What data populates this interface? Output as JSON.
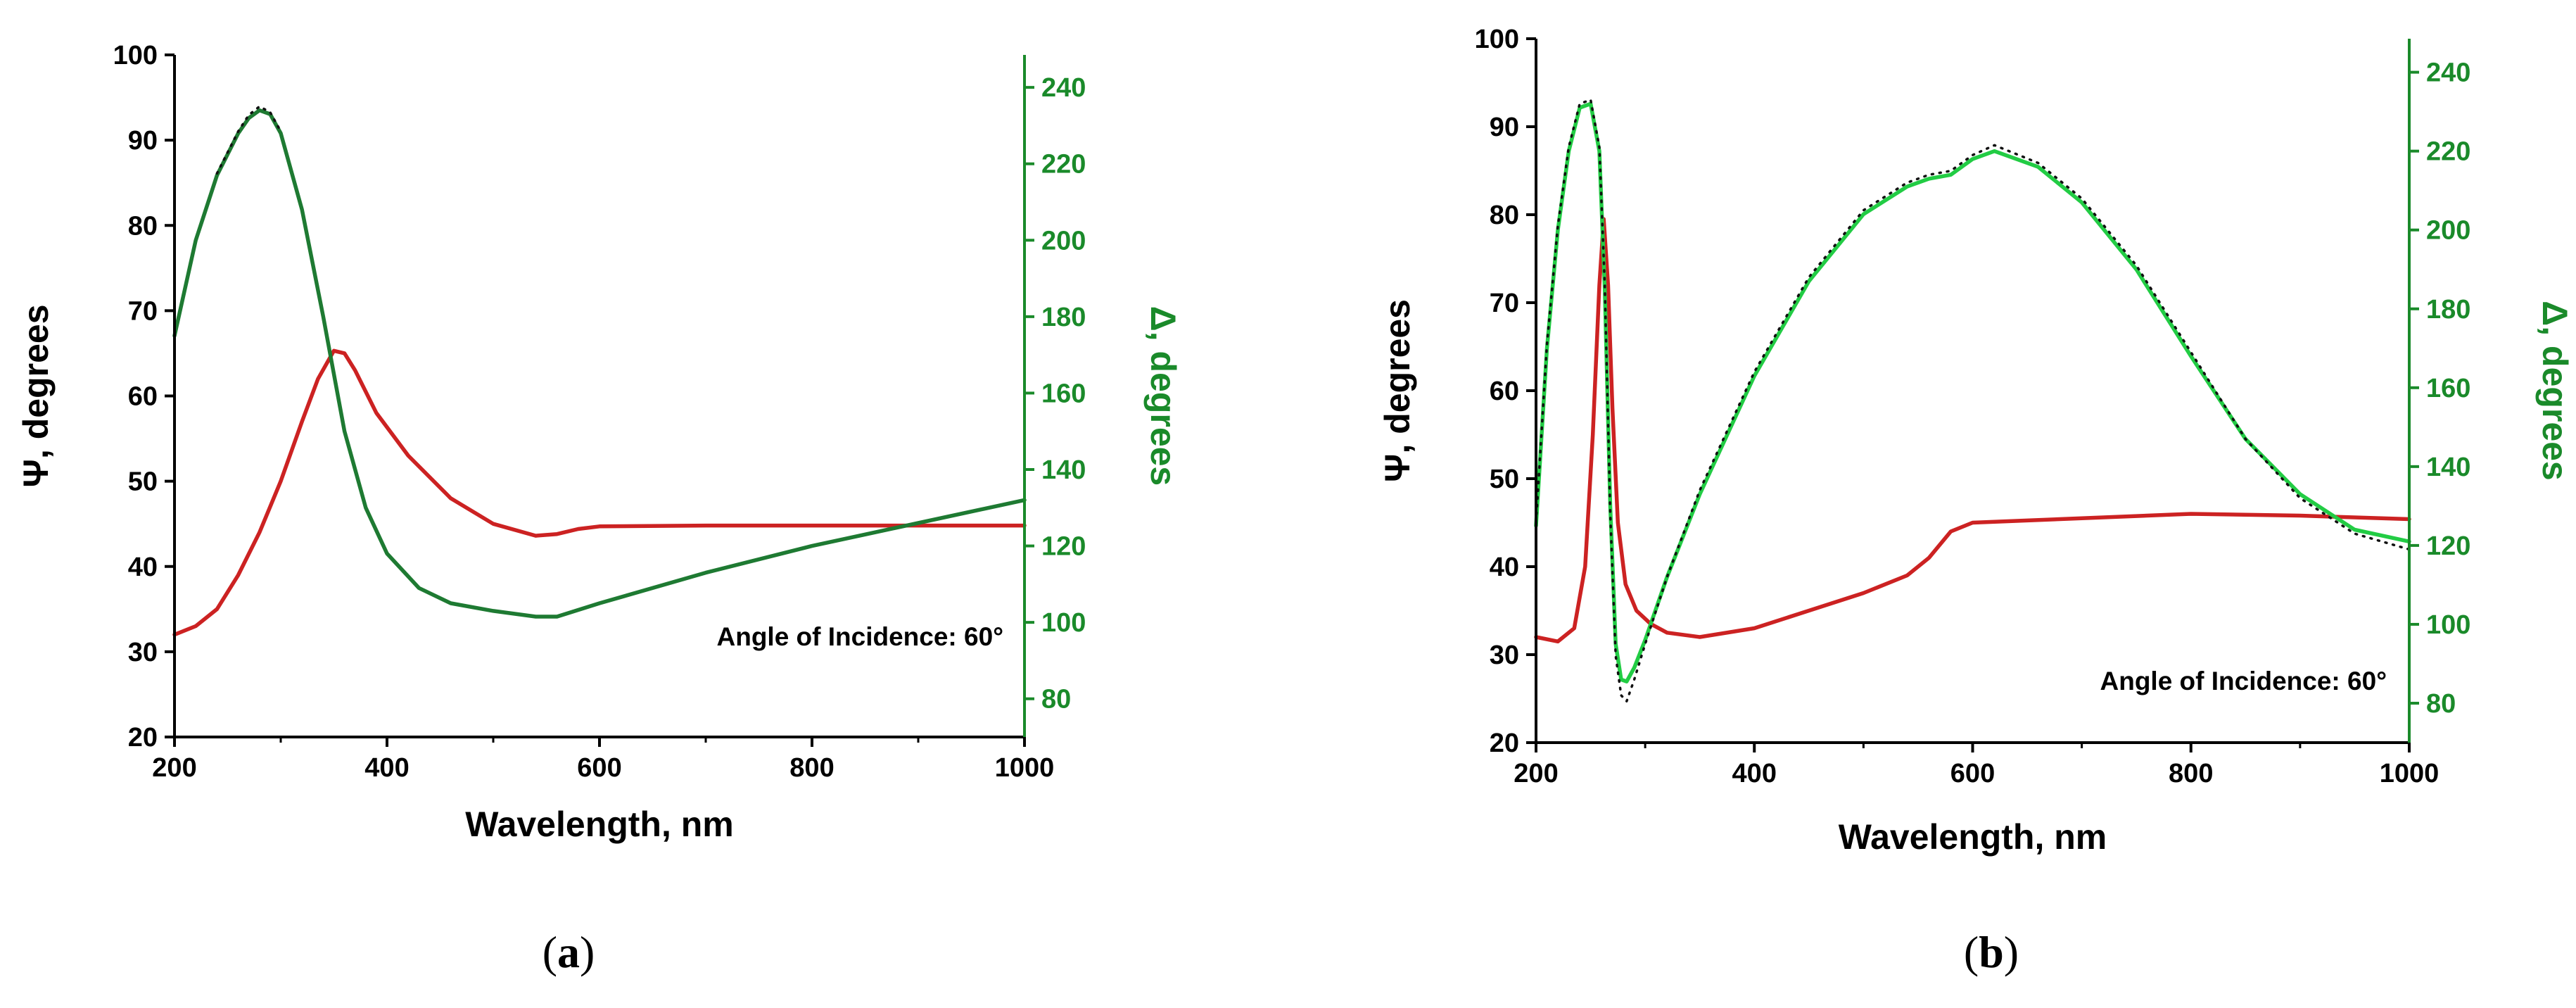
{
  "chart_data": [
    {
      "type": "line",
      "caption_open": "(",
      "panel": "a",
      "caption_close": ")",
      "xlabel": "Wavelength, nm",
      "ylabel": "Ψ, degrees",
      "y2label": "Δ, degrees",
      "xlim": [
        200,
        1000
      ],
      "ylim": [
        20,
        100
      ],
      "y2lim": [
        70,
        248.5
      ],
      "xticks": [
        "200",
        "400",
        "600",
        "800",
        "1000"
      ],
      "yticks": [
        "20",
        "30",
        "40",
        "50",
        "60",
        "70",
        "80",
        "90",
        "100"
      ],
      "y2ticks": [
        "80",
        "100",
        "120",
        "140",
        "160",
        "180",
        "200",
        "220",
        "240"
      ],
      "annotation": "Angle of Incidence: 60°",
      "colors": {
        "psi": "#cc2222",
        "delta": "#1e7a32",
        "fit": "#111111",
        "y2axis": "#1a8a2a"
      },
      "series": [
        {
          "name": "Ψ",
          "axis": "left",
          "color": "#cc2222",
          "x": [
            200,
            220,
            240,
            260,
            280,
            300,
            320,
            335,
            350,
            360,
            370,
            390,
            420,
            460,
            500,
            540,
            560,
            580,
            600,
            700,
            800,
            900,
            1000
          ],
          "y": [
            32,
            33,
            35,
            39,
            44,
            50,
            57,
            62,
            65.3,
            65,
            63,
            58,
            53,
            48,
            45,
            43.6,
            43.8,
            44.4,
            44.7,
            44.8,
            44.8,
            44.8,
            44.8
          ]
        },
        {
          "name": "Δ",
          "axis": "right",
          "color": "#1e7a32",
          "x": [
            200,
            220,
            240,
            260,
            270,
            280,
            290,
            300,
            320,
            340,
            360,
            380,
            400,
            430,
            460,
            500,
            540,
            560,
            600,
            700,
            800,
            900,
            1000
          ],
          "y": [
            175,
            200,
            217,
            228,
            232,
            234,
            233,
            228,
            208,
            180,
            150,
            130,
            118,
            109,
            105,
            103,
            101.5,
            101.5,
            105,
            113,
            120,
            126,
            132
          ]
        },
        {
          "name": "fit",
          "axis": "right",
          "color": "#111111",
          "dotted": true,
          "x": [
            240,
            260,
            270,
            280,
            290,
            300
          ],
          "y": [
            217.5,
            228.5,
            232.8,
            235,
            233.5,
            228.5
          ]
        }
      ]
    },
    {
      "type": "line",
      "caption_open": "(",
      "panel": "b",
      "caption_close": ")",
      "xlabel": "Wavelength, nm",
      "ylabel": "Ψ, degrees",
      "y2label": "Δ, degrees",
      "xlim": [
        200,
        1000
      ],
      "ylim": [
        20,
        100
      ],
      "y2lim": [
        70,
        248.5
      ],
      "xticks": [
        "200",
        "400",
        "600",
        "800",
        "1000"
      ],
      "yticks": [
        "20",
        "30",
        "40",
        "50",
        "60",
        "70",
        "80",
        "90",
        "100"
      ],
      "y2ticks": [
        "80",
        "100",
        "120",
        "140",
        "160",
        "180",
        "200",
        "220",
        "240"
      ],
      "annotation": "Angle of Incidence: 60°",
      "colors": {
        "psi": "#cc2222",
        "delta": "#22cc44",
        "fit": "#111111",
        "y2axis": "#1a8a2a"
      },
      "series": [
        {
          "name": "Ψ",
          "axis": "left",
          "color": "#cc2222",
          "x": [
            200,
            220,
            235,
            245,
            252,
            258,
            262,
            266,
            270,
            275,
            282,
            292,
            305,
            320,
            350,
            400,
            450,
            500,
            540,
            560,
            580,
            600,
            700,
            800,
            900,
            1000
          ],
          "y": [
            32,
            31.5,
            33,
            40,
            55,
            72,
            79.5,
            72,
            58,
            45,
            38,
            35,
            33.5,
            32.5,
            32,
            33,
            35,
            37,
            39,
            41,
            44,
            45,
            45.5,
            46,
            45.8,
            45.4
          ]
        },
        {
          "name": "Δ",
          "axis": "right",
          "color": "#22cc44",
          "x": [
            200,
            210,
            220,
            230,
            240,
            250,
            258,
            263,
            268,
            273,
            278,
            283,
            290,
            300,
            320,
            350,
            400,
            450,
            500,
            540,
            560,
            580,
            600,
            620,
            660,
            700,
            750,
            800,
            850,
            900,
            950,
            1000
          ],
          "y": [
            125,
            170,
            200,
            220,
            231,
            232,
            220,
            185,
            130,
            95,
            86,
            85.5,
            89,
            96,
            112,
            133,
            163,
            187,
            204,
            211,
            213,
            214,
            218,
            220,
            216,
            207,
            190,
            168,
            147,
            133,
            124,
            121
          ]
        },
        {
          "name": "fit",
          "axis": "right",
          "color": "#111111",
          "dotted": true,
          "x": [
            200,
            210,
            220,
            230,
            240,
            250,
            258,
            263,
            268,
            273,
            278,
            283,
            290,
            300,
            320,
            350,
            400,
            450,
            500,
            540,
            560,
            580,
            600,
            620,
            660,
            700,
            750,
            800,
            850,
            900,
            950,
            1000
          ],
          "y": [
            126,
            171,
            201,
            221,
            232,
            233,
            221,
            186,
            128,
            92,
            82,
            80.5,
            86,
            95,
            112,
            134,
            164,
            188,
            205,
            212,
            214,
            215,
            219,
            221.5,
            217,
            208,
            191,
            169,
            147,
            132,
            123,
            119
          ]
        }
      ]
    }
  ]
}
